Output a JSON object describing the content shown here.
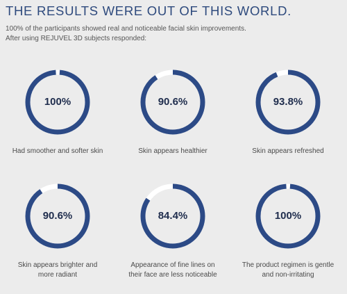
{
  "header": {
    "title": "THE RESULTS WERE OUT OF THIS WORLD.",
    "subtitle_line1": "100% of the participants showed real and noticeable facial skin improvements.",
    "subtitle_line2": "After using REJUVEL 3D subjects responded:"
  },
  "colors": {
    "ring": "#2c4a86",
    "ring_track": "#ffffff",
    "title": "#2e4a7d"
  },
  "stats": [
    {
      "value": 100.0,
      "label": "100%",
      "caption_line1": "Had smoother and softer skin",
      "caption_line2": ""
    },
    {
      "value": 90.6,
      "label": "90.6%",
      "caption_line1": "Skin appears healthier",
      "caption_line2": ""
    },
    {
      "value": 93.8,
      "label": "93.8%",
      "caption_line1": "Skin appears refreshed",
      "caption_line2": ""
    },
    {
      "value": 90.6,
      "label": "90.6%",
      "caption_line1": "Skin appears brighter and",
      "caption_line2": "more radiant"
    },
    {
      "value": 84.4,
      "label": "84.4%",
      "caption_line1": "Appearance of fine lines on",
      "caption_line2": "their face are less noticeable"
    },
    {
      "value": 100.0,
      "label": "100%",
      "caption_line1": "The product regimen is gentle",
      "caption_line2": "and non-irritating"
    }
  ]
}
